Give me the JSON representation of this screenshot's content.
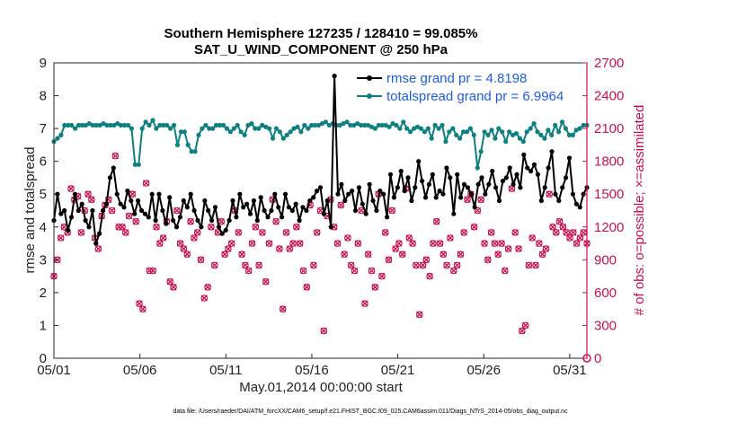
{
  "chart_data": {
    "type": "line",
    "title": "Southern Hemisphere 127235 / 128410 = 99.085%",
    "subtitle": "SAT_U_WIND_COMPONENT @ 250 hPa",
    "xlabel": "May.01,2014 00:00:00 start",
    "ylabel_left": "rmse and totalspread",
    "ylabel_right": "# of obs: o=possible; ×=assimilated",
    "ylim_left": [
      0,
      9
    ],
    "ylim_right": [
      0,
      2700
    ],
    "xlim": [
      0,
      31
    ],
    "x_tick_labels": [
      "05/01",
      "05/06",
      "05/11",
      "05/16",
      "05/21",
      "05/26",
      "05/31"
    ],
    "y_tick_labels_left": [
      "0",
      "1",
      "2",
      "3",
      "4",
      "5",
      "6",
      "7",
      "8",
      "9"
    ],
    "y_tick_labels_right": [
      "0",
      "300",
      "600",
      "900",
      "1200",
      "1500",
      "1800",
      "2100",
      "2400",
      "2700"
    ],
    "footnote": "data file: /Users/raeder/DAI/ATM_forcXX/CAM6_setup/f.e21.FHIST_BGC.f09_025.CAM6assim.011/Diags_NTrS_2014-05/obs_diag_output.nc",
    "colors": {
      "rmse": "#000000",
      "spread": "#0f8080",
      "obs": "#c8104f",
      "legend_text": "#1f5fd6"
    },
    "series": [
      {
        "name": "rmse grand pr = 4.8198",
        "values": [
          4.2,
          5.0,
          4.4,
          4.5,
          3.9,
          4.3,
          5.0,
          4.5,
          4.7,
          4.2,
          4.0,
          4.5,
          3.5,
          3.8,
          4.5,
          4.7,
          5.5,
          5.8,
          5.0,
          4.7,
          4.6,
          5.1,
          4.8,
          4.4,
          4.8,
          4.5,
          4.4,
          4.3,
          5.0,
          4.2,
          5.0,
          4.5,
          4.1,
          4.9,
          4.2,
          4.0,
          4.3,
          4.8,
          4.6,
          5.0,
          4.5,
          4.2,
          4.0,
          4.8,
          4.5,
          4.2,
          4.6,
          4.0,
          3.8,
          3.9,
          4.2,
          4.8,
          4.3,
          5.0,
          4.6,
          4.7,
          4.4,
          4.8,
          4.2,
          4.9,
          4.5,
          4.3,
          4.5,
          5.0,
          4.6,
          4.3,
          5.0,
          4.6,
          4.5,
          4.7,
          4.2,
          4.6,
          4.5,
          4.8,
          4.9,
          5.1,
          5.2,
          4.4,
          4.8,
          4.0,
          8.6,
          5.0,
          5.3,
          4.8,
          5.0,
          5.1,
          4.5,
          5.2,
          4.7,
          4.4,
          5.3,
          4.8,
          4.5,
          5.1,
          5.0,
          4.3,
          5.6,
          4.9,
          5.2,
          5.7,
          5.1,
          5.5,
          4.8,
          5.2,
          6.0,
          5.4,
          4.9,
          5.3,
          5.6,
          4.9,
          5.1,
          5.0,
          5.8,
          5.5,
          4.4,
          5.6,
          4.9,
          5.3,
          5.2,
          5.0,
          4.6,
          5.3,
          5.5,
          5.0,
          5.3,
          5.7,
          5.2,
          4.8,
          5.4,
          5.5,
          5.8,
          5.3,
          5.6,
          5.2,
          6.2,
          5.8,
          5.7,
          5.9,
          5.6,
          4.8,
          5.2,
          5.8,
          6.3,
          5.0,
          4.8,
          5.2,
          5.5,
          6.1,
          5.0,
          4.7,
          4.6,
          5.0,
          5.2
        ]
      },
      {
        "name": "totalspread grand pr = 6.9964",
        "values": [
          6.6,
          6.7,
          6.8,
          7.1,
          7.1,
          7.1,
          7.0,
          7.1,
          7.1,
          7.1,
          7.15,
          7.1,
          7.1,
          7.1,
          7.15,
          7.1,
          7.1,
          7.1,
          7.15,
          7.1,
          7.1,
          7.1,
          7.0,
          5.9,
          5.9,
          7.0,
          7.2,
          7.1,
          7.25,
          7.0,
          7.1,
          7.1,
          7.1,
          7.0,
          7.1,
          6.5,
          6.9,
          6.9,
          6.5,
          6.3,
          6.3,
          6.8,
          7.0,
          7.1,
          7.0,
          7.0,
          7.1,
          7.1,
          7.1,
          7.0,
          6.9,
          7.0,
          7.1,
          6.9,
          6.8,
          7.1,
          7.15,
          7.0,
          7.0,
          7.1,
          7.05,
          7.0,
          6.7,
          7.0,
          6.9,
          6.7,
          6.8,
          6.9,
          7.0,
          7.05,
          6.9,
          7.1,
          7.0,
          7.1,
          7.1,
          7.1,
          7.15,
          7.2,
          7.1,
          7.15,
          7.1,
          7.1,
          7.15,
          7.2,
          7.1,
          7.1,
          7.15,
          7.1,
          7.1,
          7.1,
          7.05,
          7.0,
          7.1,
          7.1,
          7.1,
          7.05,
          7.15,
          7.1,
          7.0,
          7.2,
          7.0,
          6.9,
          7.0,
          7.05,
          7.0,
          6.9,
          7.0,
          6.7,
          7.1,
          7.0,
          7.1,
          6.6,
          6.9,
          7.0,
          6.8,
          6.7,
          6.9,
          6.9,
          7.0,
          6.8,
          5.8,
          6.3,
          6.9,
          6.8,
          6.95,
          6.7,
          7.0,
          6.9,
          6.6,
          6.9,
          6.8,
          6.85,
          6.7,
          6.6,
          6.9,
          7.0,
          7.15,
          6.9,
          6.8,
          6.7,
          6.95,
          6.8,
          7.1,
          6.9,
          7.2,
          7.0,
          6.8,
          6.8,
          6.95,
          7.0,
          7.1,
          7.1
        ]
      },
      {
        "name": "# of obs assimilated",
        "values": [
          750,
          900,
          1100,
          1200,
          1150,
          1550,
          1450,
          1480,
          1150,
          1350,
          1500,
          1450,
          1100,
          1000,
          1300,
          1400,
          1450,
          1350,
          1850,
          1200,
          1200,
          1150,
          1300,
          1500,
          1250,
          500,
          450,
          1600,
          800,
          800,
          1200,
          1050,
          1100,
          1250,
          700,
          650,
          1350,
          1050,
          1000,
          950,
          1250,
          1100,
          1150,
          900,
          550,
          650,
          1200,
          850,
          1150,
          1250,
          950,
          1000,
          1050,
          1350,
          1150,
          950,
          850,
          800,
          1050,
          1200,
          850,
          1150,
          700,
          1050,
          1450,
          1250,
          1000,
          450,
          1150,
          1000,
          1050,
          1200,
          1050,
          800,
          650,
          1400,
          850,
          1150,
          1350,
          250,
          1300,
          1450,
          1200,
          1050,
          1400,
          950,
          1100,
          850,
          800,
          1050,
          1350,
          500,
          950,
          800,
          650,
          1500,
          750,
          1150,
          900,
          1350,
          1000,
          1050,
          950,
          1550,
          1100,
          1050,
          850,
          400,
          850,
          900,
          750,
          1050,
          1250,
          1050,
          950,
          850,
          1100,
          800,
          850,
          950,
          1150,
          1450,
          1500,
          1200,
          1350,
          1450,
          1050,
          900,
          1150,
          1050,
          950,
          1050,
          800,
          1000,
          1550,
          1150,
          1000,
          250,
          300,
          850,
          1100,
          850,
          1050,
          950,
          1000,
          1500,
          1200,
          1150,
          1250,
          1200,
          1150,
          1100,
          1150,
          1050,
          1100,
          1150,
          1050
        ]
      }
    ],
    "legend": [
      {
        "label": "rmse grand pr = 4.8198",
        "color": "#000000"
      },
      {
        "label": "totalspread grand pr = 6.9964",
        "color": "#0f8080"
      }
    ]
  }
}
